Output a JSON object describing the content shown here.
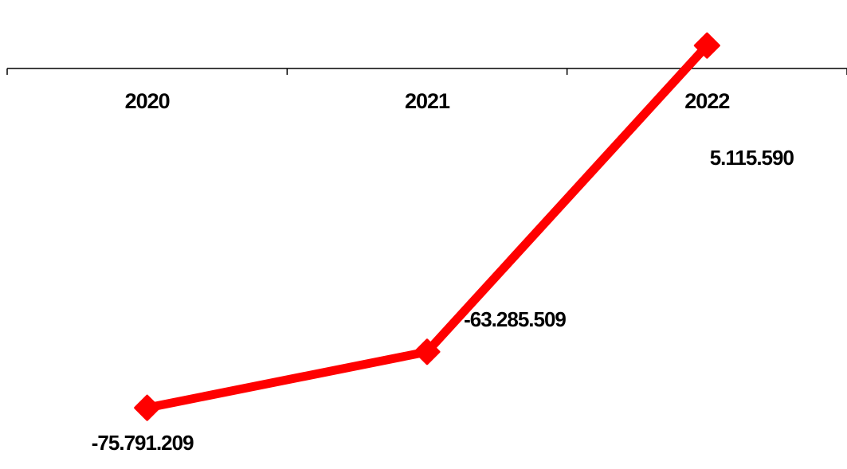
{
  "chart_data": {
    "type": "line",
    "categories": [
      "2020",
      "2021",
      "2022"
    ],
    "series": [
      {
        "values": [
          -75791209,
          -63285509,
          5115590
        ],
        "labels": [
          "-75.791.209",
          "-63.285.509",
          "5.115.590"
        ],
        "color": "#ff0000",
        "marker": "diamond"
      }
    ],
    "ylim": [
      -79500000,
      11200000
    ],
    "x_axis_crosses_at": 0,
    "grid": false,
    "legend": "none"
  }
}
